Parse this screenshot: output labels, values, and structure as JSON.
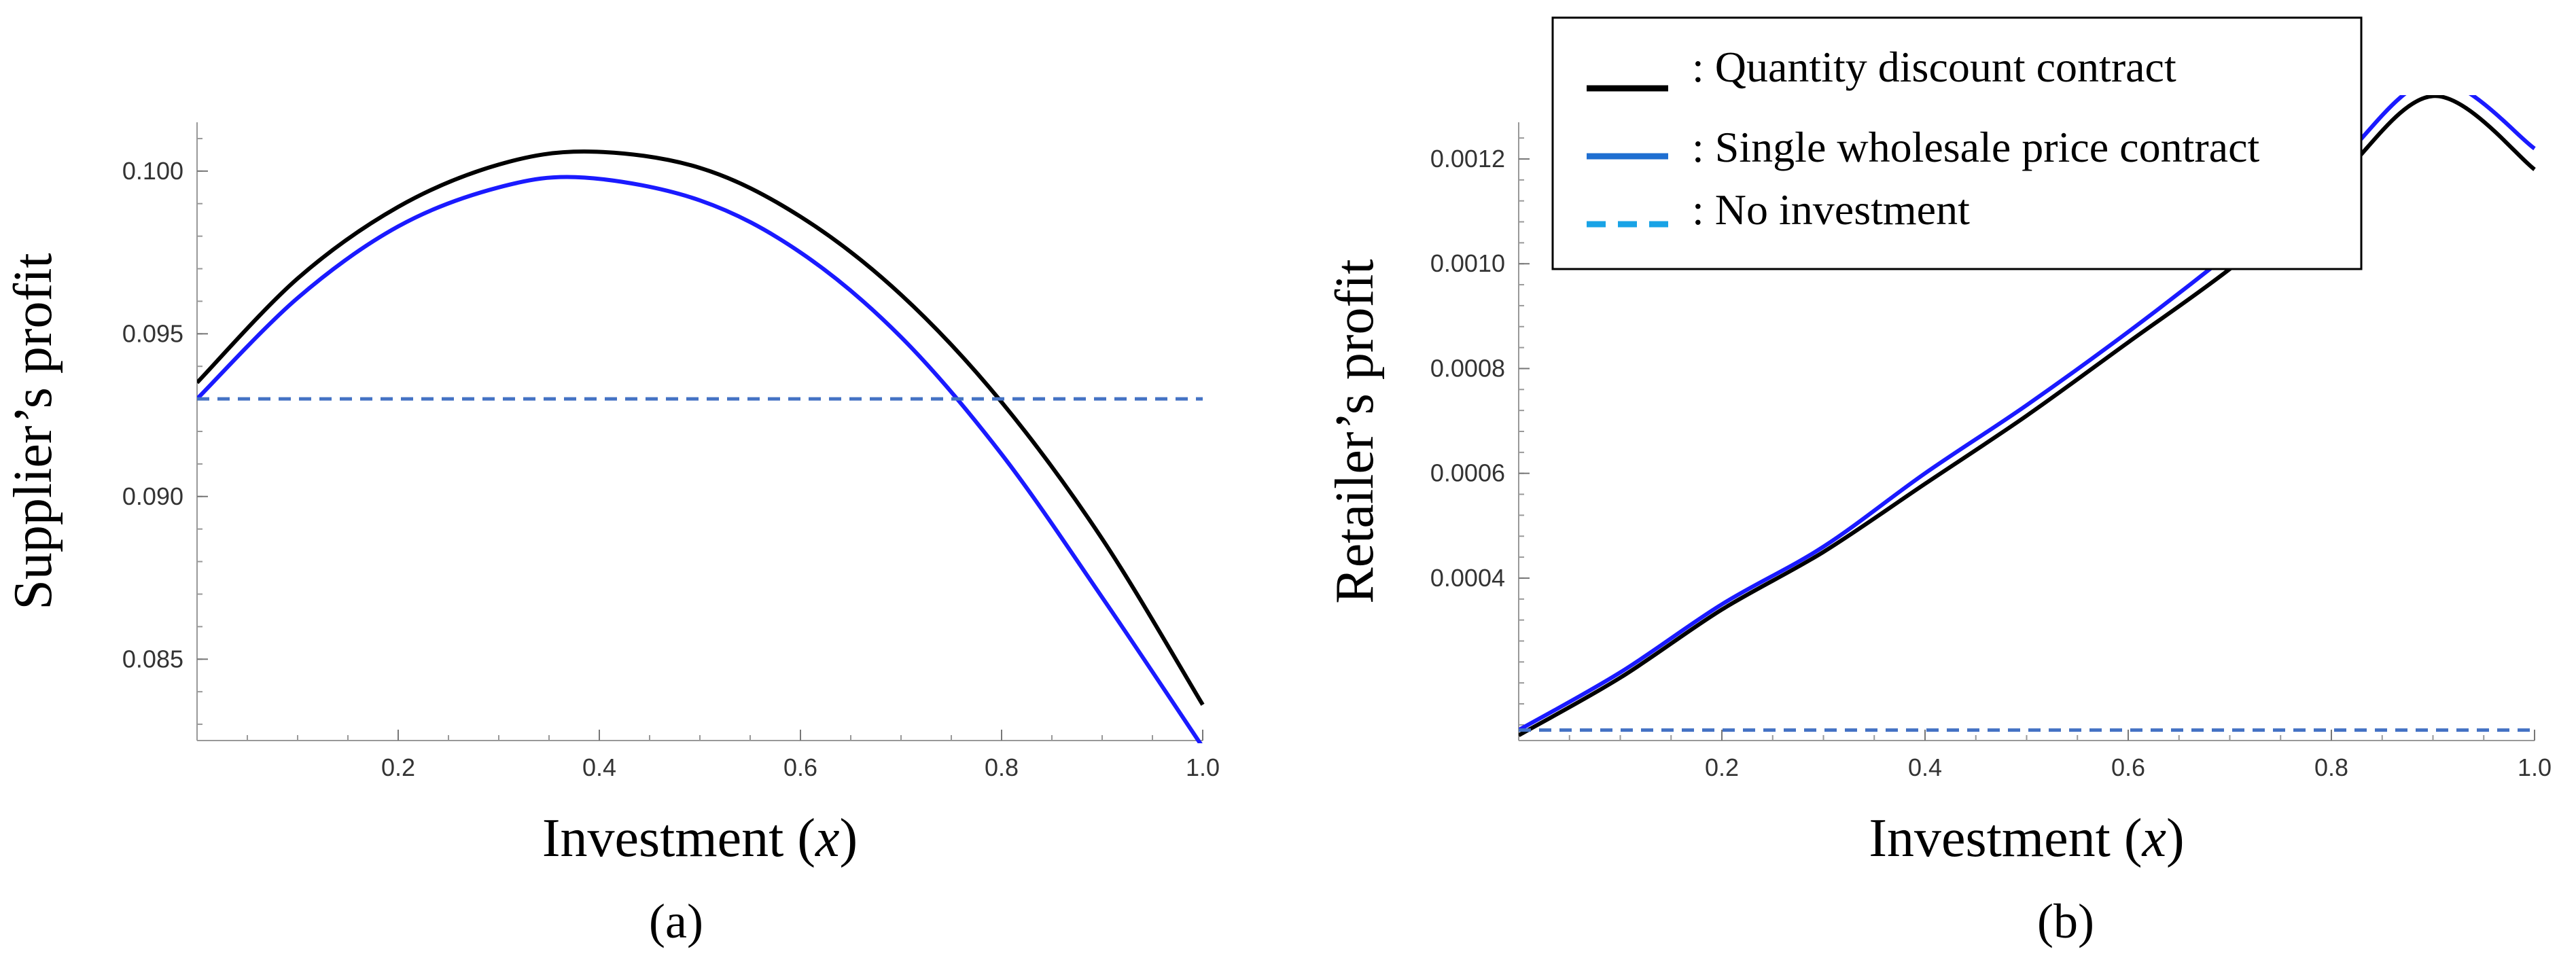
{
  "chart_data": [
    {
      "id": "a",
      "type": "line",
      "panel_label": "(a)",
      "xlabel_main": "Investment ",
      "xlabel_var": "x",
      "ylabel": "Supplier’s profit",
      "xlim": [
        0,
        1
      ],
      "ylim": [
        0.0825,
        0.1015
      ],
      "xticks": [
        0.2,
        0.4,
        0.6,
        0.8,
        1.0
      ],
      "xtick_labels": [
        "0.2",
        "0.4",
        "0.6",
        "0.8",
        "1.0"
      ],
      "yticks": [
        0.085,
        0.09,
        0.095,
        0.1
      ],
      "ytick_labels": [
        "0.085",
        "0.090",
        "0.095",
        "0.100"
      ],
      "series": [
        {
          "name": "Quantity discount contract",
          "color": "#000000",
          "style": "solid",
          "x": [
            0,
            0.1,
            0.2,
            0.3,
            0.39,
            0.5,
            0.6,
            0.7,
            0.8,
            0.9,
            1.0
          ],
          "y": [
            0.0935,
            0.0967,
            0.0989,
            0.1002,
            0.1006,
            0.1001,
            0.0986,
            0.0962,
            0.0929,
            0.0887,
            0.0836
          ]
        },
        {
          "name": "Single wholesale price contract",
          "color": "#1a1aff",
          "style": "solid",
          "x": [
            0,
            0.1,
            0.2,
            0.3,
            0.385,
            0.5,
            0.6,
            0.7,
            0.8,
            0.9,
            1.0
          ],
          "y": [
            0.093,
            0.0961,
            0.0983,
            0.0995,
            0.0998,
            0.0991,
            0.0975,
            0.0949,
            0.0913,
            0.0869,
            0.0823
          ]
        },
        {
          "name": "No investment",
          "color": "#4472c4",
          "style": "dashed",
          "x": [
            0,
            1.0
          ],
          "y": [
            0.093,
            0.093
          ]
        }
      ]
    },
    {
      "id": "b",
      "type": "line",
      "panel_label": "(b)",
      "xlabel_main": "Investment ",
      "xlabel_var": "x",
      "ylabel": "Retailer’s profit",
      "xlim": [
        0,
        1
      ],
      "ylim": [
        9e-05,
        0.00127
      ],
      "xticks": [
        0.2,
        0.4,
        0.6,
        0.8,
        1.0
      ],
      "xtick_labels": [
        "0.2",
        "0.4",
        "0.6",
        "0.8",
        "1.0"
      ],
      "yticks": [
        0.0004,
        0.0006,
        0.0008,
        0.001,
        0.0012
      ],
      "ytick_labels": [
        "0.0004",
        "0.0006",
        "0.0008",
        "0.0010",
        "0.0012"
      ],
      "series": [
        {
          "name": "Quantity discount contract",
          "color": "#000000",
          "style": "solid",
          "x": [
            0,
            0.1,
            0.2,
            0.3,
            0.4,
            0.5,
            0.6,
            0.7,
            0.8,
            0.9,
            1.0
          ],
          "y": [
            0.0001,
            0.00021,
            0.00034,
            0.00045,
            0.00058,
            0.00071,
            0.00085,
            0.00099,
            0.00115,
            0.00132,
            0.00118
          ]
        },
        {
          "name": "Single wholesale price contract",
          "color": "#1a1aff",
          "style": "solid",
          "x": [
            0,
            0.1,
            0.2,
            0.3,
            0.4,
            0.5,
            0.6,
            0.7,
            0.8,
            0.9,
            1.0
          ],
          "y": [
            0.00011,
            0.00022,
            0.00035,
            0.00046,
            0.0006,
            0.00073,
            0.00087,
            0.00102,
            0.00118,
            0.00135,
            0.00122
          ]
        },
        {
          "name": "No investment",
          "color": "#4472c4",
          "style": "dashed",
          "x": [
            0,
            1.0
          ],
          "y": [
            0.00011,
            0.00011
          ]
        }
      ]
    }
  ],
  "legend": {
    "placement": "top-right",
    "items": [
      {
        "label": ": Quantity discount contract",
        "color": "#000000",
        "style": "solid"
      },
      {
        "label": ": Single wholesale price contract",
        "color": "#1f6fd1",
        "style": "solid"
      },
      {
        "label": ": No investment",
        "color": "#19a3e6",
        "style": "dashed"
      }
    ]
  }
}
